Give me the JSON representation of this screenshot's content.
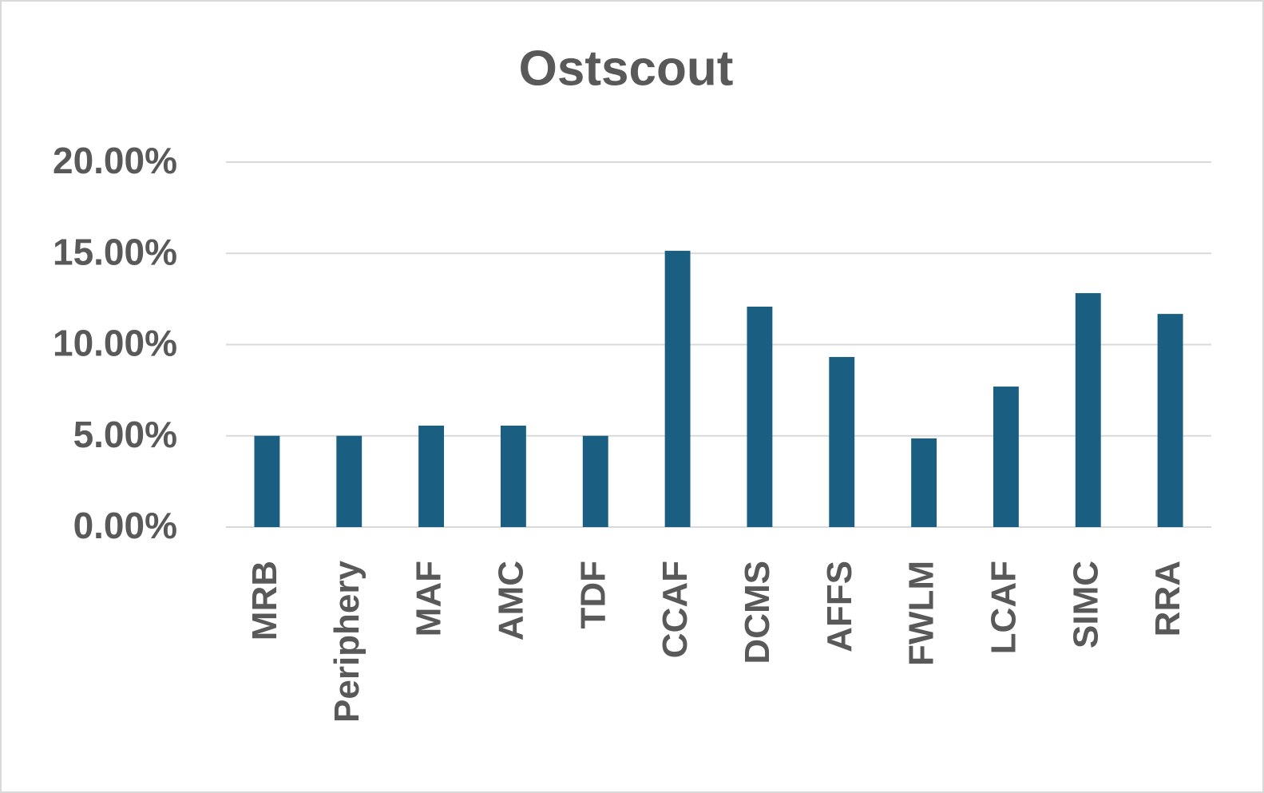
{
  "chart_data": {
    "type": "bar",
    "title": "Ostscout",
    "categories": [
      "MRB",
      "Periphery",
      "MAF",
      "AMC",
      "TDF",
      "CCAF",
      "DCMS",
      "AFFS",
      "FWLM",
      "LCAF",
      "SIMC",
      "RRA"
    ],
    "values": [
      5.0,
      5.0,
      5.56,
      5.56,
      5.0,
      15.14,
      12.08,
      9.32,
      4.86,
      7.7,
      12.82,
      11.68
    ],
    "color": "#1a5f82",
    "ylim": [
      0,
      20
    ],
    "yticks": [
      {
        "value": 0,
        "label": "0.00%"
      },
      {
        "value": 5,
        "label": "5.00%"
      },
      {
        "value": 10,
        "label": "10.00%"
      },
      {
        "value": 15,
        "label": "15.00%"
      },
      {
        "value": 20,
        "label": "20.00%"
      }
    ],
    "grid": true
  }
}
